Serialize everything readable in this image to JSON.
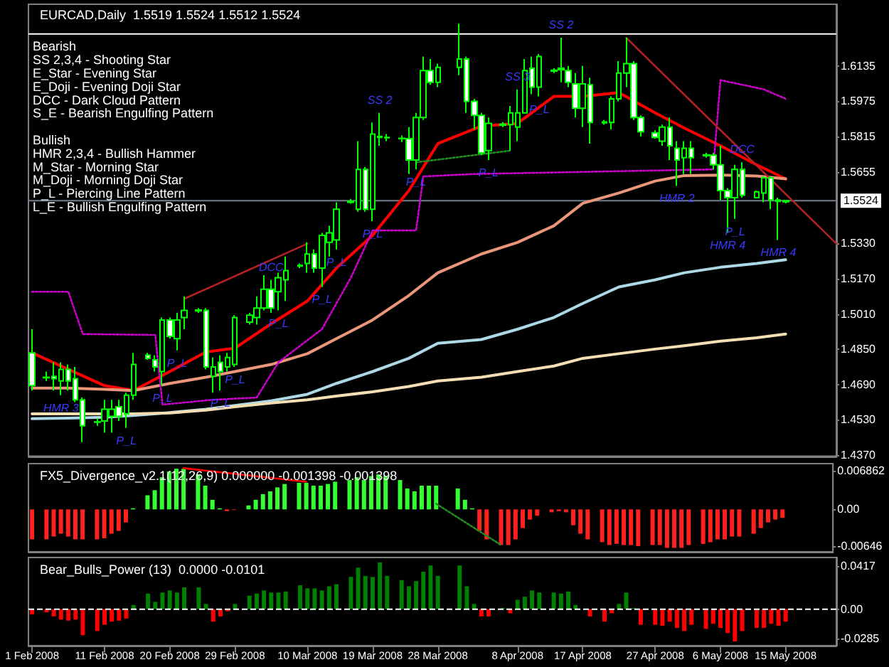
{
  "chart_data": [
    {
      "type": "candlestick",
      "title": "EURCAD,Daily  1.5519 1.5524 1.5512 1.5524",
      "grid": false,
      "tick_labels": "y",
      "x": [
        "2008-02-01",
        "2008-02-03",
        "2008-02-04",
        "2008-02-05",
        "2008-02-06",
        "2008-02-07",
        "2008-02-08",
        "2008-02-10",
        "2008-02-11",
        "2008-02-12",
        "2008-02-13",
        "2008-02-14",
        "2008-02-15",
        "2008-02-17",
        "2008-02-18",
        "2008-02-19",
        "2008-02-20",
        "2008-02-21",
        "2008-02-22",
        "2008-02-24",
        "2008-02-25",
        "2008-02-26",
        "2008-02-27",
        "2008-02-28",
        "2008-02-29",
        "2008-03-02",
        "2008-03-03",
        "2008-03-04",
        "2008-03-05",
        "2008-03-06",
        "2008-03-07",
        "2008-03-09",
        "2008-03-10",
        "2008-03-11",
        "2008-03-12",
        "2008-03-13",
        "2008-03-14",
        "2008-03-16",
        "2008-03-17",
        "2008-03-18",
        "2008-03-19",
        "2008-03-20",
        "2008-03-21",
        "2008-03-23",
        "2008-03-24",
        "2008-03-25",
        "2008-03-26",
        "2008-03-27",
        "2008-03-28",
        "2008-03-31",
        "2008-04-01",
        "2008-04-02",
        "2008-04-03",
        "2008-04-04",
        "2008-04-06",
        "2008-04-07",
        "2008-04-08",
        "2008-04-09",
        "2008-04-10",
        "2008-04-11",
        "2008-04-13",
        "2008-04-14",
        "2008-04-15",
        "2008-04-16",
        "2008-04-17",
        "2008-04-18",
        "2008-04-20",
        "2008-04-21",
        "2008-04-22",
        "2008-04-23",
        "2008-04-24",
        "2008-04-25",
        "2008-04-27",
        "2008-04-28",
        "2008-04-29",
        "2008-04-30",
        "2008-05-01",
        "2008-05-02",
        "2008-05-04",
        "2008-05-05",
        "2008-05-06",
        "2008-05-07",
        "2008-05-08",
        "2008-05-09",
        "2008-05-11",
        "2008-05-12",
        "2008-05-13",
        "2008-05-14",
        "2008-05-15"
      ],
      "ohlc": [
        [
          1.4834,
          1.4941,
          1.4663,
          1.4685
        ],
        [
          1.4721,
          1.4749,
          1.4706,
          1.4723
        ],
        [
          1.4727,
          1.4791,
          1.4663,
          1.4717
        ],
        [
          1.4706,
          1.4791,
          1.4642,
          1.4759
        ],
        [
          1.4759,
          1.4781,
          1.4663,
          1.4706
        ],
        [
          1.4717,
          1.477,
          1.461,
          1.4621
        ],
        [
          1.4621,
          1.4631,
          1.4429,
          1.4503
        ],
        [
          1.4519,
          1.4536,
          1.4503,
          1.4521
        ],
        [
          1.4525,
          1.4621,
          1.4472,
          1.4578
        ],
        [
          1.4546,
          1.4621,
          1.4472,
          1.4578
        ],
        [
          1.4589,
          1.4621,
          1.4525,
          1.4546
        ],
        [
          1.4557,
          1.4653,
          1.4493,
          1.4642
        ],
        [
          1.4642,
          1.4834,
          1.4621,
          1.4781
        ],
        [
          1.4823,
          1.4834,
          1.4802,
          1.4809
        ],
        [
          1.4802,
          1.4823,
          1.4749,
          1.477
        ],
        [
          1.4749,
          1.4994,
          1.4685,
          1.4983
        ],
        [
          1.4983,
          1.4994,
          1.4898,
          1.4909
        ],
        [
          1.4898,
          1.5015,
          1.4845,
          1.4983
        ],
        [
          1.4994,
          1.509,
          1.4941,
          1.5026
        ],
        [
          1.5024,
          1.5037,
          1.5015,
          1.5028
        ],
        [
          1.5026,
          1.5037,
          1.4759,
          1.477
        ],
        [
          1.4727,
          1.4813,
          1.4653,
          1.477
        ],
        [
          1.4791,
          1.4823,
          1.4663,
          1.4749
        ],
        [
          1.477,
          1.4834,
          1.4749,
          1.4813
        ],
        [
          1.4781,
          1.5005,
          1.477,
          1.4994
        ],
        [
          1.4973,
          1.5015,
          1.4962,
          1.5005
        ],
        [
          1.4994,
          1.509,
          1.4962,
          1.5037
        ],
        [
          1.5037,
          1.5186,
          1.5026,
          1.5122
        ],
        [
          1.5122,
          1.5165,
          1.5015,
          1.5037
        ],
        [
          1.5111,
          1.5197,
          1.5026,
          1.5175
        ],
        [
          1.5165,
          1.5271,
          1.5069,
          1.5207
        ],
        [
          1.5227,
          1.5239,
          1.5218,
          1.5231
        ],
        [
          1.5239,
          1.5335,
          1.5197,
          1.5282
        ],
        [
          1.5282,
          1.5303,
          1.5197,
          1.5218
        ],
        [
          1.5218,
          1.5378,
          1.5133,
          1.5367
        ],
        [
          1.5335,
          1.541,
          1.5271,
          1.5378
        ],
        [
          1.5346,
          1.5517,
          1.5303,
          1.5485
        ],
        [
          1.5517,
          1.5532,
          1.551,
          1.5521
        ],
        [
          1.5485,
          1.5794,
          1.5474,
          1.5666
        ],
        [
          1.5666,
          1.5677,
          1.5474,
          1.5485
        ],
        [
          1.5485,
          1.5879,
          1.5431,
          1.5826
        ],
        [
          1.5811,
          1.5922,
          1.5773,
          1.5815
        ],
        [
          1.5809,
          1.5826,
          1.5794,
          1.5811
        ],
        [
          1.5805,
          1.582,
          1.579,
          1.5807
        ],
        [
          1.5805,
          1.5858,
          1.5645,
          1.5709
        ],
        [
          1.5709,
          1.5922,
          1.5666,
          1.5901
        ],
        [
          1.5901,
          1.6178,
          1.589,
          1.6114
        ],
        [
          1.6114,
          1.6167,
          1.605,
          1.6061
        ],
        [
          1.6061,
          1.6146,
          1.6039,
          1.6129
        ],
        [
          1.6129,
          1.6327,
          1.6093,
          1.6167
        ],
        [
          1.6167,
          1.6178,
          1.5922,
          1.5975
        ],
        [
          1.5975,
          1.5986,
          1.5847,
          1.5911
        ],
        [
          1.5911,
          1.5922,
          1.573,
          1.5741
        ],
        [
          1.5751,
          1.5901,
          1.5709,
          1.5875
        ],
        [
          1.5867,
          1.588,
          1.5858,
          1.5871
        ],
        [
          1.5869,
          1.5954,
          1.5751,
          1.5922
        ],
        [
          1.5858,
          1.6029,
          1.5794,
          1.5922
        ],
        [
          1.5922,
          1.6167,
          1.5922,
          1.6114
        ],
        [
          1.6125,
          1.6178,
          1.6007,
          1.6039
        ],
        [
          1.6039,
          1.6189,
          1.5997,
          1.6178
        ],
        [
          1.6112,
          1.6125,
          1.6103,
          1.6116
        ],
        [
          1.6118,
          1.6263,
          1.6061,
          1.6125
        ],
        [
          1.6114,
          1.6135,
          1.6039,
          1.6061
        ],
        [
          1.6054,
          1.6103,
          1.5901,
          1.5943
        ],
        [
          1.5943,
          1.6135,
          1.5858,
          1.6054
        ],
        [
          1.605,
          1.6082,
          1.5783,
          1.5879
        ],
        [
          1.5877,
          1.589,
          1.5869,
          1.5881
        ],
        [
          1.5879,
          1.5997,
          1.5847,
          1.5986
        ],
        [
          1.5986,
          1.6157,
          1.5975,
          1.6103
        ],
        [
          1.6103,
          1.6263,
          1.6039,
          1.6146
        ],
        [
          1.6146,
          1.6157,
          1.589,
          1.5901
        ],
        [
          1.5901,
          1.5911,
          1.5815,
          1.5837
        ],
        [
          1.5832,
          1.5843,
          1.5805,
          1.5811
        ],
        [
          1.5794,
          1.5869,
          1.5773,
          1.5858
        ],
        [
          1.5858,
          1.5901,
          1.5709,
          1.5773
        ],
        [
          1.5762,
          1.5794,
          1.5591,
          1.5709
        ],
        [
          1.5719,
          1.5794,
          1.5645,
          1.5762
        ],
        [
          1.5762,
          1.5794,
          1.5645,
          1.5719
        ],
        [
          1.5728,
          1.5741,
          1.5719,
          1.5732
        ],
        [
          1.573,
          1.5741,
          1.5666,
          1.5687
        ],
        [
          1.5687,
          1.5773,
          1.5527,
          1.557
        ],
        [
          1.557,
          1.5581,
          1.5378,
          1.5538
        ],
        [
          1.5538,
          1.5687,
          1.5442,
          1.5666
        ],
        [
          1.5666,
          1.5698,
          1.5538,
          1.5549
        ],
        [
          1.5538,
          1.557,
          1.5538,
          1.5564
        ],
        [
          1.5559,
          1.5634,
          1.5517,
          1.5628
        ],
        [
          1.5628,
          1.5634,
          1.5485,
          1.5527
        ],
        [
          1.5527,
          1.5538,
          1.5346,
          1.5521
        ],
        [
          1.5519,
          1.5524,
          1.5512,
          1.5524
        ]
      ],
      "series": [
        {
          "type": "line",
          "color": "#ff0000",
          "x": [
            "2008-02-01",
            "2008-02-06",
            "2008-02-11",
            "2008-02-15",
            "2008-02-20",
            "2008-02-25",
            "2008-02-29",
            "2008-03-05",
            "2008-03-10",
            "2008-03-14",
            "2008-03-19",
            "2008-03-24",
            "2008-03-28",
            "2008-04-03",
            "2008-04-08",
            "2008-04-13",
            "2008-04-17",
            "2008-04-22",
            "2008-04-27",
            "2008-05-01",
            "2008-05-06",
            "2008-05-11",
            "2008-05-15"
          ],
          "values": [
            1.4834,
            1.4759,
            1.4685,
            1.4663,
            1.4749,
            1.4838,
            1.4855,
            1.4966,
            1.5069,
            1.5218,
            1.5367,
            1.557,
            1.5783,
            1.5862,
            1.5875,
            1.5997,
            1.5997,
            1.6014,
            1.5922,
            1.5854,
            1.5773,
            1.5687,
            1.5623
          ]
        },
        {
          "type": "line",
          "color": "#e9967a",
          "x": [
            "2008-02-01",
            "2008-02-06",
            "2008-02-11",
            "2008-02-15",
            "2008-02-20",
            "2008-02-25",
            "2008-02-29",
            "2008-03-05",
            "2008-03-10",
            "2008-03-14",
            "2008-03-19",
            "2008-03-24",
            "2008-03-28",
            "2008-04-03",
            "2008-04-08",
            "2008-04-13",
            "2008-04-17",
            "2008-04-22",
            "2008-04-27",
            "2008-05-01",
            "2008-05-06",
            "2008-05-11",
            "2008-05-15"
          ],
          "values": [
            1.4674,
            1.4674,
            1.4668,
            1.4663,
            1.4695,
            1.4723,
            1.4749,
            1.4781,
            1.483,
            1.4898,
            1.4983,
            1.5094,
            1.5197,
            1.5282,
            1.5335,
            1.541,
            1.5512,
            1.5559,
            1.5613,
            1.5638,
            1.564,
            1.5636,
            1.5623
          ]
        },
        {
          "type": "line",
          "color": "#add8e6",
          "x": [
            "2008-02-01",
            "2008-02-06",
            "2008-02-11",
            "2008-02-15",
            "2008-02-20",
            "2008-02-25",
            "2008-02-29",
            "2008-03-05",
            "2008-03-10",
            "2008-03-14",
            "2008-03-19",
            "2008-03-24",
            "2008-03-28",
            "2008-04-03",
            "2008-04-08",
            "2008-04-13",
            "2008-04-17",
            "2008-04-22",
            "2008-04-27",
            "2008-05-01",
            "2008-05-06",
            "2008-05-11",
            "2008-05-15"
          ],
          "values": [
            1.4535,
            1.4538,
            1.4542,
            1.455,
            1.4563,
            1.4578,
            1.4595,
            1.4616,
            1.4646,
            1.4695,
            1.4749,
            1.4809,
            1.4877,
            1.4894,
            1.4941,
            1.4994,
            1.5058,
            1.5133,
            1.5165,
            1.5197,
            1.5222,
            1.5239,
            1.5256
          ]
        },
        {
          "type": "line",
          "color": "#f5deb3",
          "x": [
            "2008-02-01",
            "2008-02-06",
            "2008-02-11",
            "2008-02-15",
            "2008-02-20",
            "2008-02-25",
            "2008-02-29",
            "2008-03-05",
            "2008-03-10",
            "2008-03-14",
            "2008-03-19",
            "2008-03-24",
            "2008-03-28",
            "2008-04-03",
            "2008-04-08",
            "2008-04-13",
            "2008-04-17",
            "2008-04-22",
            "2008-04-27",
            "2008-05-01",
            "2008-05-06",
            "2008-05-11",
            "2008-05-15"
          ],
          "values": [
            1.4557,
            1.4557,
            1.4557,
            1.4557,
            1.4561,
            1.4574,
            1.4589,
            1.4606,
            1.4621,
            1.4638,
            1.4657,
            1.4681,
            1.4706,
            1.4723,
            1.4749,
            1.4774,
            1.4809,
            1.483,
            1.4851,
            1.4866,
            1.4887,
            1.4902,
            1.4919
          ]
        },
        {
          "type": "line",
          "color": "#cc00cc",
          "line_style": "dotted",
          "x": [
            "2008-02-01",
            "2008-02-06",
            "2008-02-08",
            "2008-02-18",
            "2008-02-19",
            "2008-02-26",
            "2008-03-03",
            "2008-03-06",
            "2008-03-12",
            "2008-03-16",
            "2008-03-19",
            "2008-03-25",
            "2008-03-26",
            "2008-04-02",
            "2008-05-05",
            "2008-05-06",
            "2008-05-12",
            "2008-05-15"
          ],
          "values": [
            1.5111,
            1.5111,
            1.4919,
            1.4915,
            1.4599,
            1.4621,
            1.4631,
            1.4791,
            1.4941,
            1.5175,
            1.5389,
            1.5389,
            1.5634,
            1.5645,
            1.5666,
            1.6071,
            1.6029,
            1.5986
          ]
        },
        {
          "type": "line",
          "color": "#228b22",
          "line_style": "dotted",
          "x": [
            "2008-03-25",
            "2008-04-07"
          ],
          "values": [
            1.5698,
            1.5751
          ]
        },
        {
          "type": "line",
          "color": "#b22222",
          "line_style": "solid",
          "x": [
            "2008-02-22",
            "2008-03-10"
          ],
          "values": [
            1.5079,
            1.5329
          ]
        },
        {
          "type": "line",
          "color": "#b22222",
          "line_style": "solid",
          "x": [
            "2008-04-23",
            "2008-05-22"
          ],
          "values": [
            1.6263,
            1.5329
          ]
        }
      ],
      "xlim": [
        "2008-01-31T12:00",
        "2008-05-22"
      ],
      "ylim": [
        1.4365,
        1.6415
      ],
      "yticks": [
        {
          "value": 1.437,
          "label": "1.4370"
        },
        {
          "value": 1.453,
          "label": "1.4530"
        },
        {
          "value": 1.469,
          "label": "1.4690"
        },
        {
          "value": 1.485,
          "label": "1.4850"
        },
        {
          "value": 1.501,
          "label": "1.5010"
        },
        {
          "value": 1.517,
          "label": "1.5170"
        },
        {
          "value": 1.533,
          "label": "1.5330"
        },
        1.5655,
        1.5815,
        1.5975,
        1.6135
      ],
      "ref_lines": [
        {
          "axis": "y",
          "value": 1.5524,
          "label": "1.5524",
          "color": "#708090"
        },
        {
          "axis": "y",
          "value": 1.628,
          "label": null,
          "color": "#ffffff"
        }
      ],
      "annotations": [
        "Bearish\nSS 2,3,4 - Shooting Star\nE_Star - Evening Star\nE_Doji - Evening Doji Star\nDCC - Dark Cloud Pattern\nS_E - Bearish Engulfing Pattern\n\nBullish\nHMR 2,3,4 - Bullish Hammer\nM_Star - Morning Star\nM_Doji - Morning Doji Star\nP_L - Piercing Line Pattern\nL_E - Bullish Engulfing Pattern",
        {
          "text": "HMR 3",
          "x": "2008-02-05",
          "y": 1.4642
        },
        {
          "text": "P_L",
          "x": "2008-02-14",
          "y": 1.4493
        },
        {
          "text": "P_L",
          "x": "2008-02-19",
          "y": 1.4685
        },
        {
          "text": "P_L",
          "x": "2008-02-21",
          "y": 1.4845
        },
        {
          "text": "P_L",
          "x": "2008-02-27",
          "y": 1.4663
        },
        {
          "text": "P_L",
          "x": "2008-02-29",
          "y": 1.477
        },
        {
          "text": "DCC",
          "x": "2008-03-05",
          "y": 1.5165
        },
        {
          "text": "P_L",
          "x": "2008-03-06",
          "y": 1.5026
        },
        {
          "text": "P_L",
          "x": "2008-03-12",
          "y": 1.5133
        },
        {
          "text": "P_L",
          "x": "2008-03-14",
          "y": 1.5303
        },
        {
          "text": "P_L",
          "x": "2008-03-19",
          "y": 1.5431
        },
        {
          "text": "SS 2",
          "x": "2008-03-20",
          "y": 1.5922
        },
        {
          "text": "P_L",
          "x": "2008-03-25",
          "y": 1.5666
        },
        {
          "text": "P_L",
          "x": "2008-04-04",
          "y": 1.5709
        },
        {
          "text": "SS 3",
          "x": "2008-04-08",
          "y": 1.6029
        },
        {
          "text": "P_L",
          "x": "2008-04-11",
          "y": 1.5997
        },
        {
          "text": "SS 2",
          "x": "2008-04-14",
          "y": 1.6263
        },
        {
          "text": "HMR 2",
          "x": "2008-04-30",
          "y": 1.5591
        },
        {
          "text": "HMR 4",
          "x": "2008-05-07",
          "y": 1.5378
        },
        {
          "text": "P_L",
          "x": "2008-05-08",
          "y": 1.5442
        },
        {
          "text": "DCC",
          "x": "2008-05-09",
          "y": 1.5698
        },
        {
          "text": "HMR 4",
          "x": "2008-05-14",
          "y": 1.5346
        }
      ]
    },
    {
      "type": "bar",
      "title": "FX5_Divergence_v2.1(12,26,9) 0.000000 -0.001398 -0.001398",
      "grid": false,
      "tick_labels": "y",
      "x": [
        "2008-02-01",
        "2008-02-03",
        "2008-02-04",
        "2008-02-05",
        "2008-02-06",
        "2008-02-07",
        "2008-02-08",
        "2008-02-10",
        "2008-02-11",
        "2008-02-12",
        "2008-02-13",
        "2008-02-14",
        "2008-02-15",
        "2008-02-17",
        "2008-02-18",
        "2008-02-19",
        "2008-02-20",
        "2008-02-21",
        "2008-02-22",
        "2008-02-24",
        "2008-02-25",
        "2008-02-26",
        "2008-02-27",
        "2008-02-28",
        "2008-02-29",
        "2008-03-02",
        "2008-03-03",
        "2008-03-04",
        "2008-03-05",
        "2008-03-06",
        "2008-03-07",
        "2008-03-09",
        "2008-03-10",
        "2008-03-11",
        "2008-03-12",
        "2008-03-13",
        "2008-03-14",
        "2008-03-16",
        "2008-03-17",
        "2008-03-18",
        "2008-03-19",
        "2008-03-20",
        "2008-03-21",
        "2008-03-23",
        "2008-03-24",
        "2008-03-25",
        "2008-03-26",
        "2008-03-27",
        "2008-03-28",
        "2008-03-31",
        "2008-04-01",
        "2008-04-02",
        "2008-04-03",
        "2008-04-04",
        "2008-04-06",
        "2008-04-07",
        "2008-04-08",
        "2008-04-09",
        "2008-04-10",
        "2008-04-11",
        "2008-04-13",
        "2008-04-14",
        "2008-04-15",
        "2008-04-16",
        "2008-04-17",
        "2008-04-18",
        "2008-04-20",
        "2008-04-21",
        "2008-04-22",
        "2008-04-23",
        "2008-04-24",
        "2008-04-25",
        "2008-04-27",
        "2008-04-28",
        "2008-04-29",
        "2008-04-30",
        "2008-05-01",
        "2008-05-02",
        "2008-05-04",
        "2008-05-05",
        "2008-05-06",
        "2008-05-07",
        "2008-05-08",
        "2008-05-09",
        "2008-05-11",
        "2008-05-12",
        "2008-05-13",
        "2008-05-14",
        "2008-05-15"
      ],
      "values": [
        -0.0053,
        -0.0053,
        -0.0048,
        -0.0043,
        -0.0048,
        -0.0053,
        -0.0053,
        -0.0053,
        -0.0051,
        -0.0043,
        -0.0038,
        -0.0023,
        0.0002,
        0.0025,
        0.0034,
        0.0057,
        0.0067,
        0.0072,
        0.0072,
        0.0062,
        0.0042,
        0.0017,
        0.0002,
        -0.0003,
        -0.0001,
        0.0007,
        0.0017,
        0.0027,
        0.0032,
        0.0039,
        0.0045,
        0.0047,
        0.0047,
        0.0042,
        0.0042,
        0.0045,
        0.0049,
        0.0052,
        0.0057,
        0.0052,
        0.0059,
        0.0062,
        0.0059,
        0.0052,
        0.0037,
        0.0032,
        0.0042,
        0.0042,
        0.0042,
        0.0037,
        0.0017,
        0.0002,
        -0.0038,
        -0.0053,
        -0.0063,
        -0.0063,
        -0.0053,
        -0.0033,
        -0.0018,
        -0.0011,
        -0.0005,
        -0.0003,
        -0.0005,
        -0.0028,
        -0.0043,
        -0.0053,
        -0.0058,
        -0.0063,
        -0.0061,
        -0.0063,
        -0.0063,
        -0.0065,
        -0.0063,
        -0.0063,
        -0.0068,
        -0.0068,
        -0.0068,
        -0.0063,
        -0.0061,
        -0.0058,
        -0.0053,
        -0.0053,
        -0.0048,
        -0.0048,
        -0.0043,
        -0.0033,
        -0.0023,
        -0.0018,
        -0.0015
      ],
      "colors": [
        "#ff2020",
        "#ff2020",
        "#ff2020",
        "#ff2020",
        "#ff2020",
        "#ff2020",
        "#ff2020",
        "#ff2020",
        "#ff2020",
        "#ff2020",
        "#ff2020",
        "#ff2020",
        "#33ff33",
        "#33ff33",
        "#33ff33",
        "#33ff33",
        "#33ff33",
        "#33ff33",
        "#33ff33",
        "#33ff33",
        "#33ff33",
        "#33ff33",
        "#33ff33",
        "#ff2020",
        "#ff2020",
        "#33ff33",
        "#33ff33",
        "#33ff33",
        "#33ff33",
        "#33ff33",
        "#33ff33",
        "#33ff33",
        "#33ff33",
        "#33ff33",
        "#33ff33",
        "#33ff33",
        "#33ff33",
        "#33ff33",
        "#33ff33",
        "#33ff33",
        "#33ff33",
        "#33ff33",
        "#33ff33",
        "#33ff33",
        "#33ff33",
        "#33ff33",
        "#33ff33",
        "#33ff33",
        "#33ff33",
        "#33ff33",
        "#33ff33",
        "#33ff33",
        "#ff2020",
        "#ff2020",
        "#ff2020",
        "#ff2020",
        "#ff2020",
        "#ff2020",
        "#ff2020",
        "#ff2020",
        "#ff2020",
        "#ff2020",
        "#ff2020",
        "#ff2020",
        "#ff2020",
        "#ff2020",
        "#ff2020",
        "#ff2020",
        "#ff2020",
        "#ff2020",
        "#ff2020",
        "#ff2020",
        "#ff2020",
        "#ff2020",
        "#ff2020",
        "#ff2020",
        "#ff2020",
        "#ff2020",
        "#ff2020",
        "#ff2020",
        "#ff2020",
        "#ff2020",
        "#ff2020",
        "#ff2020",
        "#ff2020",
        "#ff2020",
        "#ff2020",
        "#ff2020",
        "#ff2020"
      ],
      "series": [
        {
          "type": "line",
          "color": "#ff0000",
          "line_style": "solid",
          "x": [
            "2008-02-22",
            "2008-03-10"
          ],
          "values": [
            0.0073,
            0.0049
          ]
        },
        {
          "type": "line",
          "color": "#228b22",
          "line_style": "dotted",
          "x": [
            "2008-03-28",
            "2008-04-06"
          ],
          "values": [
            0.001,
            -0.0063
          ]
        }
      ],
      "xlim": [
        "2008-01-31T12:00",
        "2008-05-22"
      ],
      "ylim": [
        -0.0075,
        0.0081
      ],
      "yticks": [
        -0.00646,
        {
          "value": 0,
          "label": "0.00"
        },
        0.006862
      ]
    },
    {
      "type": "bar",
      "title": "Bear_Bulls_Power (13)  0.0000 -0.0101",
      "grid": false,
      "x": [
        "2008-02-01",
        "2008-02-03",
        "2008-02-04",
        "2008-02-05",
        "2008-02-06",
        "2008-02-07",
        "2008-02-08",
        "2008-02-10",
        "2008-02-11",
        "2008-02-12",
        "2008-02-13",
        "2008-02-14",
        "2008-02-15",
        "2008-02-17",
        "2008-02-18",
        "2008-02-19",
        "2008-02-20",
        "2008-02-21",
        "2008-02-22",
        "2008-02-24",
        "2008-02-25",
        "2008-02-26",
        "2008-02-27",
        "2008-02-28",
        "2008-02-29",
        "2008-03-02",
        "2008-03-03",
        "2008-03-04",
        "2008-03-05",
        "2008-03-06",
        "2008-03-07",
        "2008-03-09",
        "2008-03-10",
        "2008-03-11",
        "2008-03-12",
        "2008-03-13",
        "2008-03-14",
        "2008-03-16",
        "2008-03-17",
        "2008-03-18",
        "2008-03-19",
        "2008-03-20",
        "2008-03-21",
        "2008-03-23",
        "2008-03-24",
        "2008-03-25",
        "2008-03-26",
        "2008-03-27",
        "2008-03-28",
        "2008-03-31",
        "2008-04-01",
        "2008-04-02",
        "2008-04-03",
        "2008-04-04",
        "2008-04-06",
        "2008-04-07",
        "2008-04-08",
        "2008-04-09",
        "2008-04-10",
        "2008-04-11",
        "2008-04-13",
        "2008-04-14",
        "2008-04-15",
        "2008-04-16",
        "2008-04-17",
        "2008-04-18",
        "2008-04-20",
        "2008-04-21",
        "2008-04-22",
        "2008-04-23",
        "2008-04-24",
        "2008-04-25",
        "2008-04-27",
        "2008-04-28",
        "2008-04-29",
        "2008-04-30",
        "2008-05-01",
        "2008-05-02",
        "2008-05-04",
        "2008-05-05",
        "2008-05-06",
        "2008-05-07",
        "2008-05-08",
        "2008-05-09",
        "2008-05-11",
        "2008-05-12",
        "2008-05-13",
        "2008-05-14",
        "2008-05-15"
      ],
      "values": [
        -0.005,
        -0.003,
        -0.007,
        -0.01,
        -0.011,
        -0.01,
        -0.025,
        -0.021,
        -0.015,
        -0.012,
        -0.011,
        -0.009,
        0.004,
        0.015,
        0.007,
        0.016,
        0.018,
        0.016,
        0.021,
        0.021,
        0.005,
        -0.012,
        -0.007,
        -0.002,
        0.005,
        0.013,
        0.015,
        0.018,
        0.016,
        0.016,
        0.017,
        0.023,
        0.02,
        0.02,
        0.018,
        0.022,
        0.024,
        0.031,
        0.04,
        0.032,
        0.031,
        0.045,
        0.032,
        0.028,
        0.022,
        0.027,
        0.036,
        0.042,
        0.032,
        0.042,
        0.022,
        0.005,
        -0.007,
        -0.007,
        0.001,
        -0.004,
        0.009,
        0.012,
        0.018,
        0.016,
        0.016,
        0.015,
        0.017,
        0.004,
        null,
        -0.007,
        -0.012,
        -0.004,
        0.005,
        0.016,
        0.001,
        -0.015,
        -0.015,
        -0.016,
        -0.012,
        -0.018,
        -0.021,
        -0.015,
        -0.019,
        -0.014,
        -0.018,
        -0.023,
        -0.031,
        -0.021,
        -0.018,
        -0.018,
        -0.014,
        -0.016,
        -0.012
      ],
      "colors": [
        "#ff0000",
        "#ff0000",
        "#ff0000",
        "#ff0000",
        "#ff0000",
        "#ff0000",
        "#ff0000",
        "#ff0000",
        "#ff0000",
        "#ff0000",
        "#ff0000",
        "#ff0000",
        "#008000",
        "#008000",
        "#008000",
        "#008000",
        "#008000",
        "#008000",
        "#008000",
        "#008000",
        "#008000",
        "#ff0000",
        "#ff0000",
        "#ff0000",
        "#008000",
        "#008000",
        "#008000",
        "#008000",
        "#008000",
        "#008000",
        "#008000",
        "#008000",
        "#008000",
        "#008000",
        "#008000",
        "#008000",
        "#008000",
        "#008000",
        "#008000",
        "#008000",
        "#008000",
        "#008000",
        "#008000",
        "#008000",
        "#008000",
        "#008000",
        "#008000",
        "#008000",
        "#008000",
        "#008000",
        "#008000",
        "#008000",
        "#ff0000",
        "#ff0000",
        "#008000",
        "#ff0000",
        "#008000",
        "#008000",
        "#008000",
        "#008000",
        "#008000",
        "#008000",
        "#008000",
        "#008000",
        "#ff0000",
        "#ff0000",
        "#ff0000",
        "#ff0000",
        "#008000",
        "#008000",
        "#008000",
        "#ff0000",
        "#ff0000",
        "#ff0000",
        "#ff0000",
        "#ff0000",
        "#ff0000",
        "#ff0000",
        "#ff0000",
        "#ff0000",
        "#ff0000",
        "#ff0000",
        "#ff0000",
        "#ff0000",
        "#ff0000",
        "#ff0000",
        "#ff0000",
        "#ff0000",
        "#ff0000"
      ],
      "xlim": [
        "2008-01-31T12:00",
        "2008-05-22"
      ],
      "xticks": [
        {
          "value": "2008-02-01",
          "label": "1 Feb 2008"
        },
        {
          "value": "2008-02-11",
          "label": "11 Feb 2008"
        },
        {
          "value": "2008-02-20",
          "label": "20 Feb 2008"
        },
        {
          "value": "2008-02-29",
          "label": "29 Feb 2008"
        },
        {
          "value": "2008-03-10",
          "label": "10 Mar 2008"
        },
        {
          "value": "2008-03-19",
          "label": "19 Mar 2008"
        },
        {
          "value": "2008-03-28",
          "label": "28 Mar 2008"
        },
        {
          "value": "2008-04-08",
          "label": "8 Apr 2008"
        },
        {
          "value": "2008-04-17",
          "label": "17 Apr 2008"
        },
        {
          "value": "2008-04-27",
          "label": "27 Apr 2008"
        },
        {
          "value": "2008-05-06",
          "label": "6 May 2008"
        },
        {
          "value": "2008-05-15",
          "label": "15 May 2008"
        }
      ],
      "ylim": [
        -0.0351,
        0.0497
      ],
      "yticks": [
        -0.0285,
        {
          "value": 0,
          "label": "0.00"
        },
        0.0417
      ],
      "ref_lines": [
        {
          "axis": "y",
          "value": 0,
          "label": null,
          "color": "#ffffff",
          "line_style": "dashed"
        }
      ]
    }
  ]
}
